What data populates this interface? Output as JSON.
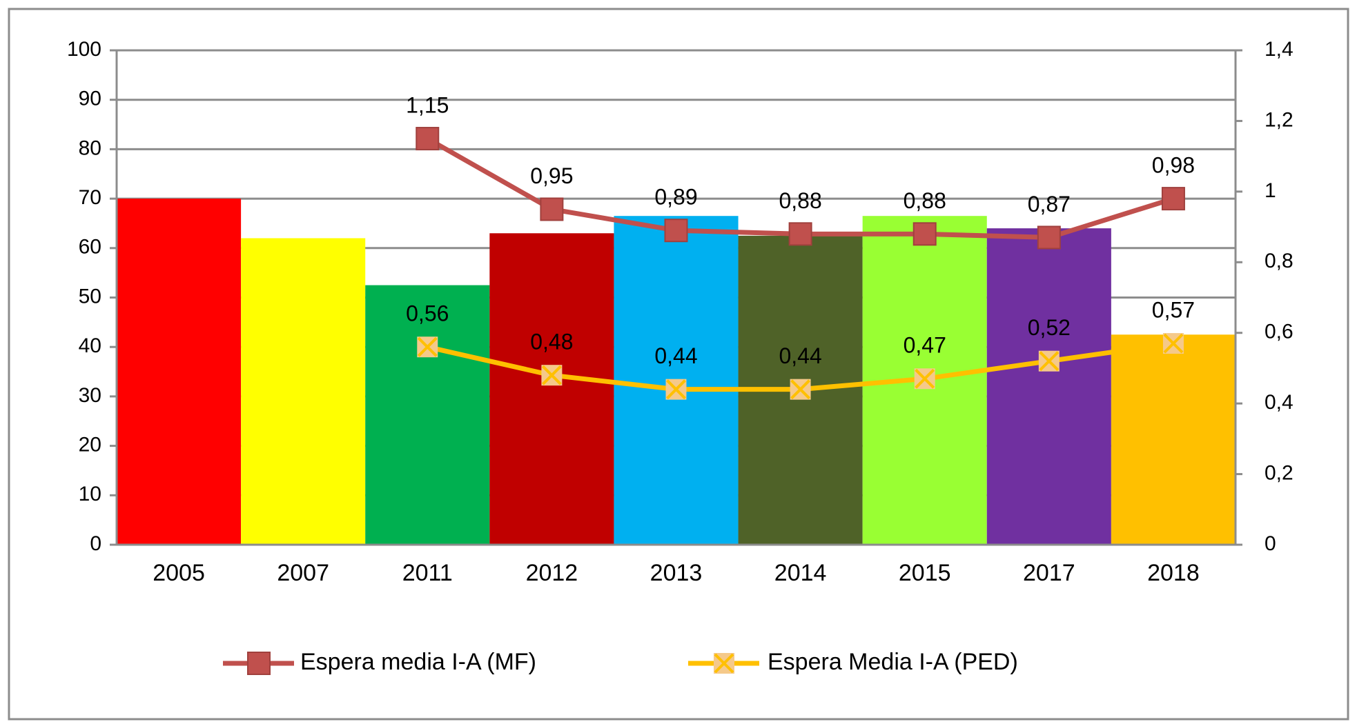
{
  "chart_data": {
    "type": "bar",
    "categories": [
      "2005",
      "2007",
      "2011",
      "2012",
      "2013",
      "2014",
      "2015",
      "2017",
      "2018"
    ],
    "series": [
      {
        "type": "bar",
        "colors": [
          "#ff0000",
          "#ffff00",
          "#00b050",
          "#c00000",
          "#00b0f0",
          "#4f6228",
          "#99ff33",
          "#7030a0",
          "#ffc000"
        ],
        "values": [
          70,
          62,
          52.5,
          63,
          66.5,
          62.5,
          66.5,
          64,
          42.5
        ]
      },
      {
        "type": "line",
        "name": "Espera media I-A (MF)",
        "color": "#c0504d",
        "marker": "square",
        "axis": "y2",
        "values": [
          null,
          null,
          1.15,
          0.95,
          0.89,
          0.88,
          0.88,
          0.87,
          0.98
        ],
        "value_labels": [
          null,
          null,
          "1,15",
          "0,95",
          "0,89",
          "0,88",
          "0,88",
          "0,87",
          "0,98"
        ]
      },
      {
        "type": "line",
        "name": "Espera Media I-A (PED)",
        "color": "#ffc000",
        "marker": "x",
        "axis": "y2",
        "values": [
          null,
          null,
          0.56,
          0.48,
          0.44,
          0.44,
          0.47,
          0.52,
          0.57
        ],
        "value_labels": [
          null,
          null,
          "0,56",
          "0,48",
          "0,44",
          "0,44",
          "0,47",
          "0,52",
          "0,57"
        ]
      }
    ],
    "ylim": [
      0,
      100
    ],
    "yticks": [
      0,
      10,
      20,
      30,
      40,
      50,
      60,
      70,
      80,
      90,
      100
    ],
    "y2lim": [
      0,
      1.4
    ],
    "y2ticks": [
      0,
      {
        "value": 0.2,
        "label": "0,2"
      },
      {
        "value": 0.4,
        "label": "0,4"
      },
      {
        "value": 0.6,
        "label": "0,6"
      },
      {
        "value": 0.8,
        "label": "0,8"
      },
      1,
      {
        "value": 1.2,
        "label": "1,2"
      },
      {
        "value": 1.4,
        "label": "1,4"
      }
    ],
    "grid": true,
    "legend": "bottom"
  }
}
